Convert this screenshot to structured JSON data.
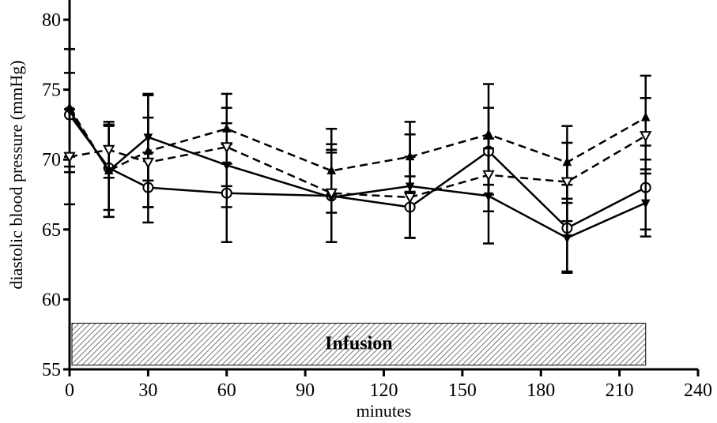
{
  "chart_data": {
    "type": "line",
    "title": "",
    "xlabel": "minutes",
    "ylabel": "diastolic blood pressure (mmHg)",
    "xlim": [
      0,
      240
    ],
    "ylim": [
      55,
      82
    ],
    "xticks": [
      0,
      30,
      60,
      90,
      120,
      150,
      180,
      210,
      240
    ],
    "yticks": [
      55,
      60,
      65,
      70,
      75,
      80
    ],
    "xtick_labels": [
      "0",
      "30",
      "60",
      "90",
      "120",
      "150",
      "180",
      "210",
      "240"
    ],
    "ytick_labels": [
      "55",
      "60",
      "65",
      "70",
      "75",
      "80"
    ],
    "grid": false,
    "legend": "none",
    "annotation": {
      "text": "Infusion",
      "x_start": 0,
      "x_end": 220,
      "y_low": 55.3,
      "y_high": 58.3
    },
    "x": [
      0,
      15,
      30,
      60,
      100,
      130,
      160,
      190,
      220
    ],
    "series": [
      {
        "marker": "open-circle",
        "line": "solid",
        "values": [
          73.2,
          69.4,
          68.0,
          67.6,
          67.4,
          66.6,
          70.6,
          65.1,
          68.0
        ],
        "error": [
          3.0,
          3.0,
          2.5,
          3.5,
          3.3,
          2.2,
          3.1,
          3.1,
          3.0
        ]
      },
      {
        "marker": "filled-down-triangle",
        "line": "solid",
        "values": [
          73.5,
          69.2,
          71.6,
          69.6,
          67.3,
          68.1,
          67.4,
          64.4,
          66.9
        ],
        "error": [
          4.4,
          3.3,
          3.1,
          3.0,
          3.2,
          3.7,
          3.4,
          2.5,
          2.4
        ]
      },
      {
        "marker": "filled-up-triangle",
        "line": "dashed",
        "values": [
          73.7,
          69.2,
          70.6,
          72.2,
          69.2,
          70.2,
          71.8,
          69.8,
          73.0
        ],
        "error": [
          4.2,
          3.3,
          4.0,
          2.5,
          3.0,
          2.5,
          3.6,
          2.6,
          3.0
        ]
      },
      {
        "marker": "open-down-triangle",
        "line": "dashed",
        "values": [
          70.2,
          70.7,
          69.8,
          70.9,
          67.6,
          67.3,
          68.9,
          68.4,
          71.7
        ],
        "error": [
          3.4,
          2.0,
          3.2,
          2.8,
          3.5,
          2.9,
          2.6,
          2.8,
          2.7
        ]
      }
    ]
  }
}
